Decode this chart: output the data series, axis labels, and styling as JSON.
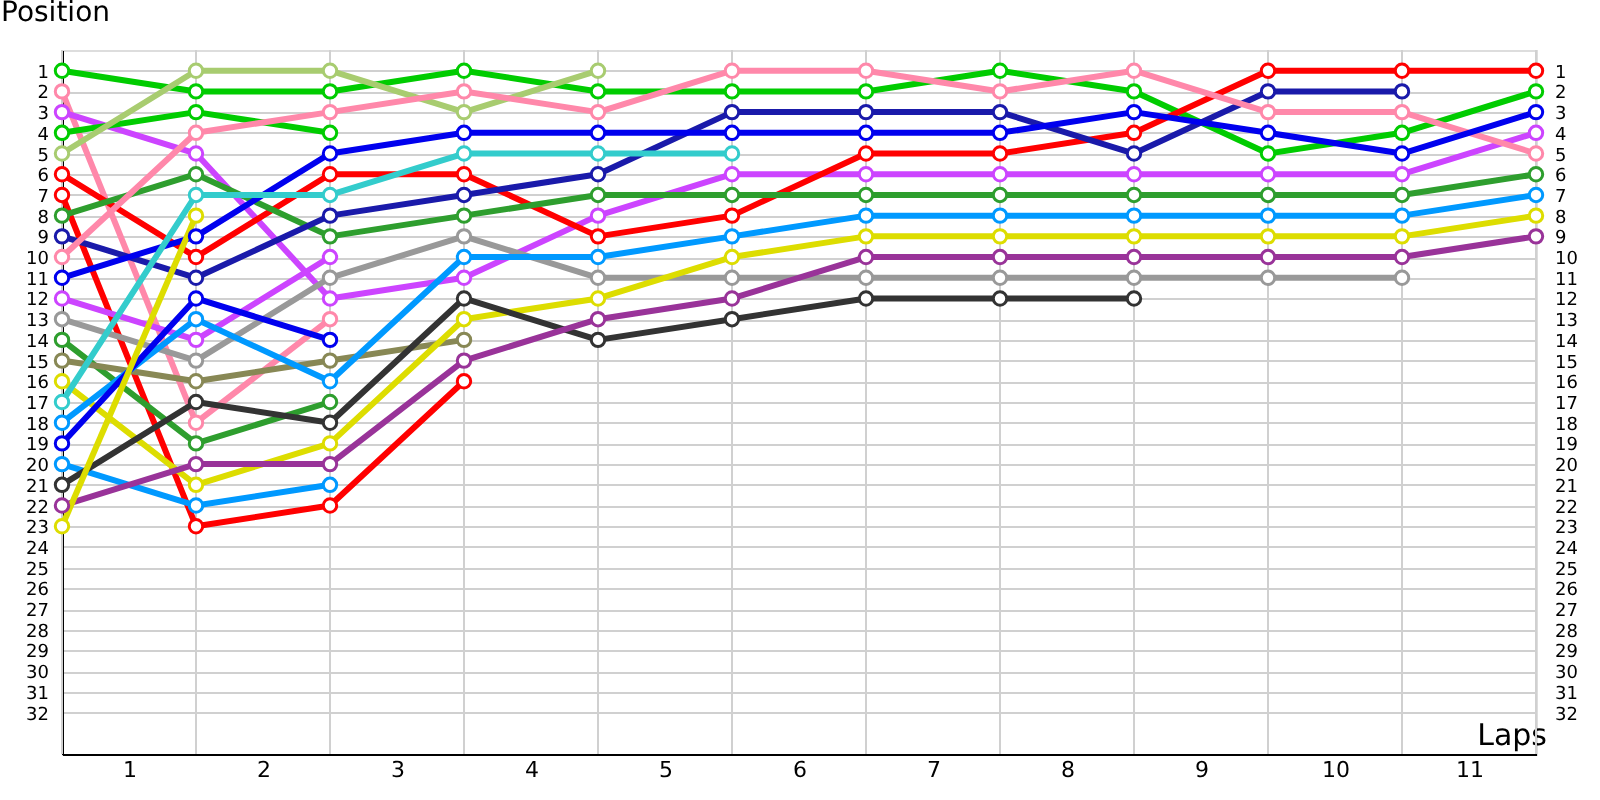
{
  "chart_data": {
    "type": "line",
    "xlabel": "Laps",
    "ylabel": "Position",
    "x": [
      0,
      1,
      2,
      3,
      4,
      5,
      6,
      7,
      8,
      9,
      10,
      11
    ],
    "xlim": [
      0,
      11
    ],
    "xticks": [
      {
        "value": 0.5,
        "label": "1"
      },
      {
        "value": 1.5,
        "label": "2"
      },
      {
        "value": 2.5,
        "label": "3"
      },
      {
        "value": 3.5,
        "label": "4"
      },
      {
        "value": 4.5,
        "label": "5"
      },
      {
        "value": 5.5,
        "label": "6"
      },
      {
        "value": 6.5,
        "label": "7"
      },
      {
        "value": 7.5,
        "label": "8"
      },
      {
        "value": 8.5,
        "label": "9"
      },
      {
        "value": 9.5,
        "label": "10"
      },
      {
        "value": 10.5,
        "label": "11"
      }
    ],
    "ylim": [
      34,
      0
    ],
    "yticks": [
      1,
      2,
      3,
      4,
      5,
      6,
      7,
      8,
      9,
      10,
      11,
      12,
      13,
      14,
      15,
      16,
      17,
      18,
      19,
      20,
      21,
      22,
      23,
      24,
      25,
      26,
      27,
      28,
      29,
      30,
      31,
      32
    ],
    "y2lim": [
      34,
      0
    ],
    "y2ticks": [
      1,
      2,
      3,
      4,
      5,
      6,
      7,
      8,
      9,
      10,
      11,
      12,
      13,
      14,
      15,
      16,
      17,
      18,
      19,
      20,
      21,
      22,
      23,
      24,
      25,
      26,
      27,
      28,
      29,
      30,
      31,
      32
    ],
    "grid": true,
    "legend": false,
    "marker": "circle",
    "line_style": "solid",
    "series": [
      {
        "color": "#00cc00",
        "values": [
          1,
          2,
          2,
          1,
          2,
          2,
          2,
          1,
          2,
          5,
          4,
          2
        ]
      },
      {
        "color": "#ff88aa",
        "values": [
          2,
          18,
          13,
          null,
          null,
          null,
          null,
          null,
          null,
          null,
          null,
          null
        ]
      },
      {
        "color": "#cc44ff",
        "values": [
          3,
          5,
          12,
          11,
          8,
          6,
          6,
          6,
          6,
          6,
          6,
          4
        ]
      },
      {
        "color": "#00cc00",
        "values": [
          4,
          3,
          4,
          null,
          null,
          null,
          null,
          null,
          null,
          null,
          null,
          null
        ]
      },
      {
        "color": "#a8cc70",
        "values": [
          5,
          1,
          1,
          3,
          1,
          null,
          null,
          null,
          null,
          null,
          null,
          null
        ]
      },
      {
        "color": "#ff0000",
        "values": [
          6,
          10,
          6,
          6,
          9,
          8,
          5,
          5,
          4,
          1,
          1,
          1
        ]
      },
      {
        "color": "#ff0000",
        "values": [
          7,
          23,
          22,
          16,
          null,
          null,
          null,
          null,
          null,
          null,
          null,
          null
        ]
      },
      {
        "color": "#2e9e2e",
        "values": [
          8,
          6,
          9,
          8,
          7,
          7,
          7,
          7,
          7,
          7,
          7,
          6
        ]
      },
      {
        "color": "#1a1aaa",
        "values": [
          9,
          11,
          8,
          7,
          6,
          3,
          3,
          3,
          5,
          2,
          2,
          null
        ]
      },
      {
        "color": "#ff88aa",
        "values": [
          10,
          4,
          3,
          2,
          3,
          1,
          1,
          2,
          1,
          3,
          3,
          5
        ]
      },
      {
        "color": "#0000ee",
        "values": [
          11,
          9,
          5,
          4,
          4,
          4,
          4,
          4,
          3,
          4,
          5,
          3
        ]
      },
      {
        "color": "#cc44ff",
        "values": [
          12,
          14,
          10,
          null,
          null,
          null,
          null,
          null,
          null,
          null,
          null,
          null
        ]
      },
      {
        "color": "#999999",
        "values": [
          13,
          15,
          11,
          9,
          11,
          11,
          11,
          11,
          11,
          11,
          11,
          null
        ]
      },
      {
        "color": "#2e9e2e",
        "values": [
          14,
          19,
          17,
          null,
          null,
          null,
          null,
          null,
          null,
          null,
          null,
          null
        ]
      },
      {
        "color": "#888855",
        "values": [
          15,
          16,
          15,
          14,
          null,
          null,
          null,
          null,
          null,
          null,
          null,
          null
        ]
      },
      {
        "color": "#dddd00",
        "values": [
          16,
          21,
          19,
          13,
          12,
          10,
          9,
          9,
          9,
          9,
          9,
          8
        ]
      },
      {
        "color": "#33cccc",
        "values": [
          17,
          7,
          7,
          5,
          5,
          5,
          null,
          null,
          null,
          null,
          null,
          null
        ]
      },
      {
        "color": "#0099ff",
        "values": [
          18,
          13,
          16,
          10,
          10,
          9,
          8,
          8,
          8,
          8,
          8,
          7
        ]
      },
      {
        "color": "#0000ee",
        "values": [
          19,
          12,
          14,
          null,
          null,
          null,
          null,
          null,
          null,
          null,
          null,
          null
        ]
      },
      {
        "color": "#0099ff",
        "values": [
          20,
          22,
          21,
          null,
          null,
          null,
          null,
          null,
          null,
          null,
          null,
          null
        ]
      },
      {
        "color": "#333333",
        "values": [
          21,
          17,
          18,
          12,
          14,
          13,
          12,
          12,
          12,
          null,
          null,
          null
        ]
      },
      {
        "color": "#993399",
        "values": [
          22,
          20,
          20,
          15,
          13,
          12,
          10,
          10,
          10,
          10,
          10,
          9
        ]
      },
      {
        "color": "#dddd00",
        "values": [
          23,
          8,
          null,
          null,
          null,
          null,
          null,
          null,
          null,
          null,
          null,
          null
        ]
      }
    ]
  }
}
